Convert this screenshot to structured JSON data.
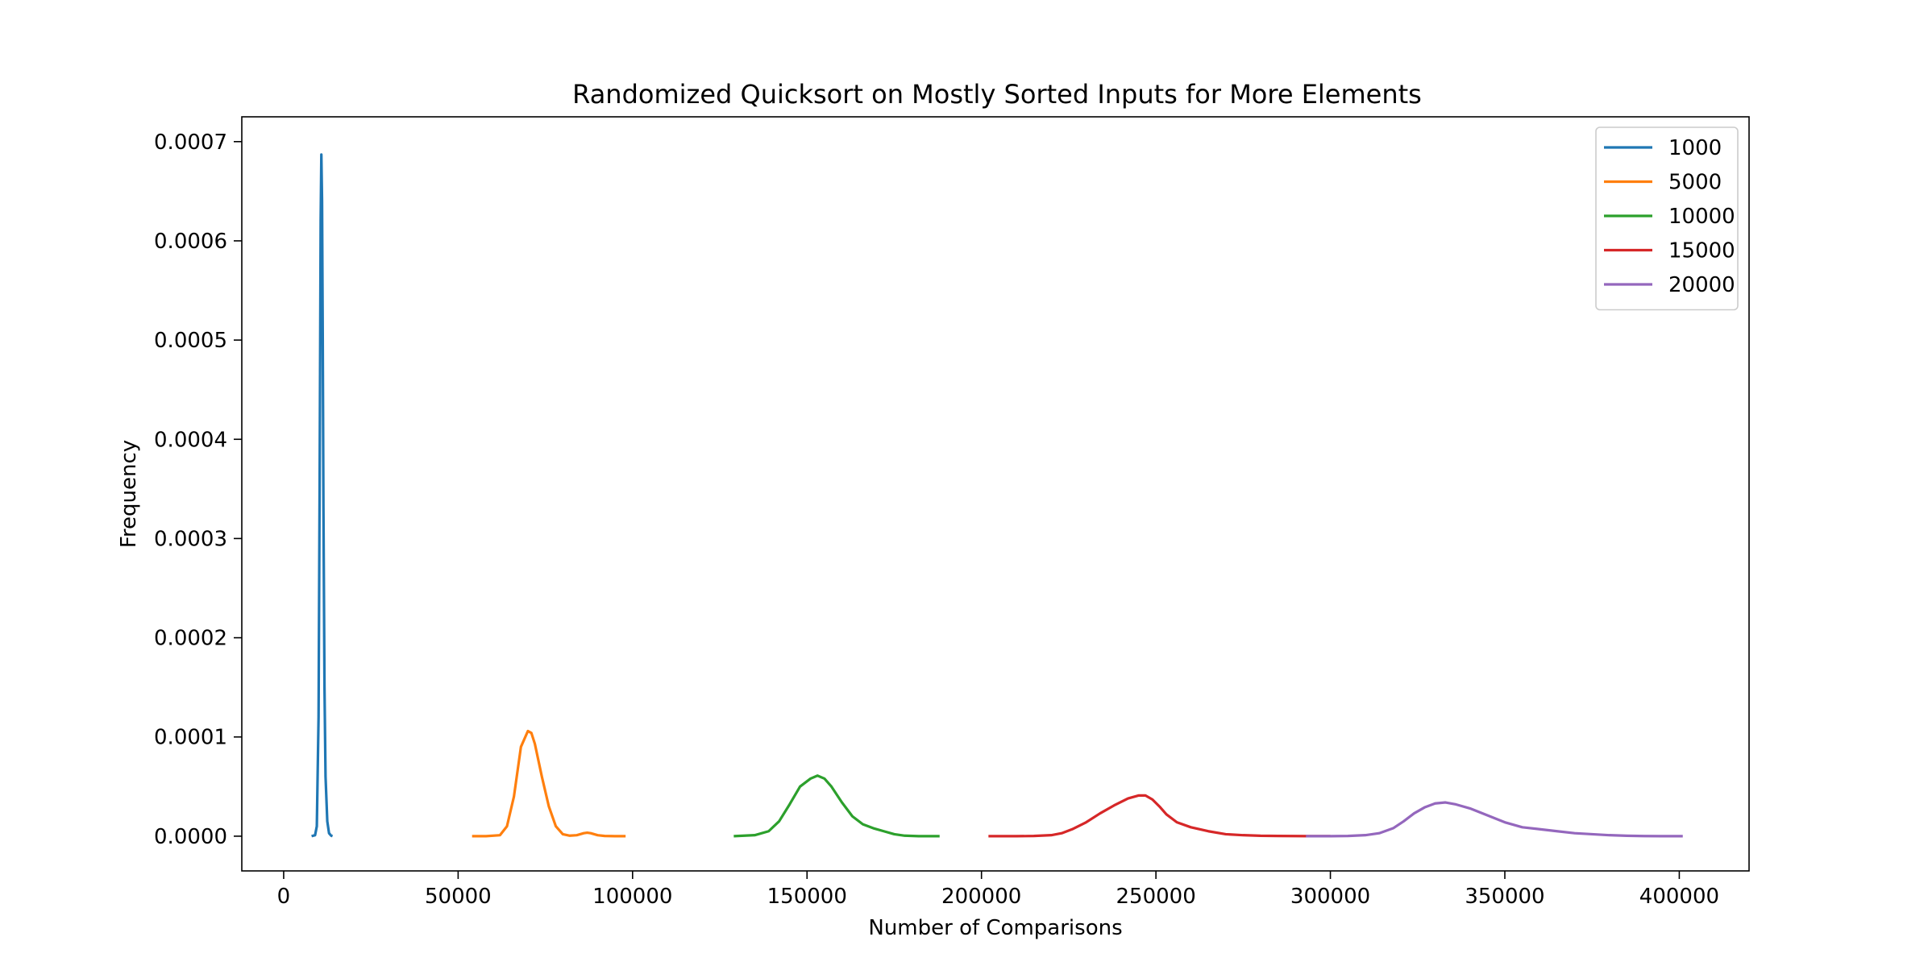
{
  "chart_data": {
    "type": "line",
    "title": "Randomized Quicksort on Mostly Sorted Inputs for More Elements",
    "xlabel": "Number of Comparisons",
    "ylabel": "Frequency",
    "xlim": [
      -12000,
      420000
    ],
    "ylim": [
      -3.5e-05,
      0.000725
    ],
    "xticks": [
      0,
      50000,
      100000,
      150000,
      200000,
      250000,
      300000,
      350000,
      400000
    ],
    "xtick_labels": [
      "0",
      "50000",
      "100000",
      "150000",
      "200000",
      "250000",
      "300000",
      "350000",
      "400000"
    ],
    "yticks": [
      0,
      0.0001,
      0.0002,
      0.0003,
      0.0004,
      0.0005,
      0.0006,
      0.0007
    ],
    "ytick_labels": [
      "0.0000",
      "0.0001",
      "0.0002",
      "0.0003",
      "0.0004",
      "0.0005",
      "0.0006",
      "0.0007"
    ],
    "grid": false,
    "legend_position": "top-right",
    "series": [
      {
        "name": "1000",
        "color": "#1f77b4",
        "x": [
          8000,
          9000,
          9500,
          10000,
          10300,
          10600,
          10800,
          11000,
          11200,
          11400,
          11700,
          12000,
          12500,
          13000,
          13600,
          14000
        ],
        "y": [
          0,
          1e-06,
          1e-05,
          0.00012,
          0.00035,
          0.00062,
          0.000687,
          0.00064,
          0.0005,
          0.00033,
          0.00015,
          6e-05,
          1.5e-05,
          3e-06,
          5e-07,
          0
        ]
      },
      {
        "name": "5000",
        "color": "#ff7f0e",
        "x": [
          54000,
          58000,
          62000,
          64000,
          66000,
          68000,
          70000,
          71000,
          72000,
          74000,
          76000,
          78000,
          80000,
          82000,
          84000,
          86000,
          87000,
          88000,
          90000,
          92000,
          95000,
          98000
        ],
        "y": [
          0,
          0,
          1e-06,
          1e-05,
          4e-05,
          9e-05,
          0.000106,
          0.000104,
          9.3e-05,
          6e-05,
          3e-05,
          1e-05,
          2e-06,
          5e-07,
          1e-06,
          3e-06,
          3.5e-06,
          3e-06,
          1e-06,
          2e-07,
          0,
          0
        ]
      },
      {
        "name": "10000",
        "color": "#2ca02c",
        "x": [
          129000,
          135000,
          139000,
          142000,
          145000,
          148000,
          151000,
          153000,
          155000,
          157000,
          160000,
          163000,
          166000,
          169000,
          172000,
          175000,
          178000,
          182000,
          188000
        ],
        "y": [
          0,
          1e-06,
          5e-06,
          1.5e-05,
          3.2e-05,
          5e-05,
          5.8e-05,
          6.1e-05,
          5.8e-05,
          5e-05,
          3.4e-05,
          2e-05,
          1.2e-05,
          8e-06,
          5e-06,
          2e-06,
          5e-07,
          0,
          0
        ]
      },
      {
        "name": "15000",
        "color": "#d62728",
        "x": [
          202000,
          210000,
          215000,
          220000,
          223000,
          226000,
          230000,
          234000,
          238000,
          242000,
          245000,
          247000,
          249000,
          251000,
          253000,
          256000,
          260000,
          265000,
          270000,
          275000,
          280000,
          285000,
          290000,
          295000,
          300000
        ],
        "y": [
          0,
          0,
          2e-07,
          1e-06,
          3e-06,
          7e-06,
          1.4e-05,
          2.3e-05,
          3.1e-05,
          3.8e-05,
          4.1e-05,
          4.1e-05,
          3.7e-05,
          3e-05,
          2.2e-05,
          1.4e-05,
          9e-06,
          5e-06,
          2e-06,
          1e-06,
          4e-07,
          2e-07,
          1e-07,
          0,
          0
        ]
      },
      {
        "name": "20000",
        "color": "#9467bd",
        "x": [
          293000,
          300000,
          305000,
          310000,
          314000,
          318000,
          321000,
          324000,
          327000,
          330000,
          333000,
          336000,
          340000,
          345000,
          350000,
          355000,
          360000,
          365000,
          370000,
          375000,
          380000,
          385000,
          390000,
          395000,
          401000
        ],
        "y": [
          0,
          0,
          2e-07,
          1e-06,
          3e-06,
          8e-06,
          1.5e-05,
          2.3e-05,
          2.9e-05,
          3.3e-05,
          3.4e-05,
          3.2e-05,
          2.8e-05,
          2.1e-05,
          1.4e-05,
          9e-06,
          7e-06,
          5e-06,
          3e-06,
          2e-06,
          1e-06,
          4e-07,
          1e-07,
          0,
          0
        ]
      }
    ]
  }
}
